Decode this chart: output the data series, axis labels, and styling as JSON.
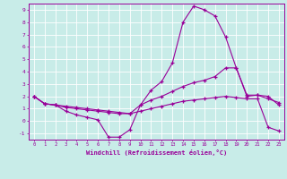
{
  "xlabel": "Windchill (Refroidissement éolien,°C)",
  "background_color": "#c8ece8",
  "line_color": "#990099",
  "grid_color": "#ffffff",
  "xlim": [
    -0.5,
    23.5
  ],
  "ylim": [
    -1.5,
    9.5
  ],
  "yticks": [
    -1,
    0,
    1,
    2,
    3,
    4,
    5,
    6,
    7,
    8,
    9
  ],
  "xticks": [
    0,
    1,
    2,
    3,
    4,
    5,
    6,
    7,
    8,
    9,
    10,
    11,
    12,
    13,
    14,
    15,
    16,
    17,
    18,
    19,
    20,
    21,
    22,
    23
  ],
  "curve1_x": [
    0,
    1,
    2,
    3,
    4,
    5,
    6,
    7,
    8,
    9,
    10,
    11,
    12,
    13,
    14,
    15,
    16,
    17,
    18,
    19,
    20,
    21,
    22,
    23
  ],
  "curve1_y": [
    2.0,
    1.4,
    1.3,
    0.8,
    0.5,
    0.3,
    0.1,
    -1.3,
    -1.3,
    -0.7,
    1.3,
    2.5,
    3.2,
    4.7,
    8.0,
    9.3,
    9.0,
    8.5,
    6.8,
    4.3,
    2.0,
    2.1,
    2.0,
    1.3
  ],
  "curve2_x": [
    0,
    1,
    2,
    3,
    4,
    5,
    6,
    7,
    8,
    9,
    10,
    11,
    12,
    13,
    14,
    15,
    16,
    17,
    18,
    19,
    20,
    21,
    22,
    23
  ],
  "curve2_y": [
    2.0,
    1.4,
    1.3,
    1.1,
    1.0,
    0.9,
    0.8,
    0.7,
    0.6,
    0.6,
    1.3,
    1.7,
    2.0,
    2.4,
    2.8,
    3.1,
    3.3,
    3.6,
    4.3,
    4.3,
    2.1,
    2.1,
    1.8,
    1.5
  ],
  "curve3_x": [
    0,
    1,
    2,
    3,
    4,
    5,
    6,
    7,
    8,
    9,
    10,
    11,
    12,
    13,
    14,
    15,
    16,
    17,
    18,
    19,
    20,
    21,
    22,
    23
  ],
  "curve3_y": [
    2.0,
    1.4,
    1.3,
    1.2,
    1.1,
    1.0,
    0.9,
    0.8,
    0.7,
    0.6,
    0.8,
    1.0,
    1.2,
    1.4,
    1.6,
    1.7,
    1.8,
    1.9,
    2.0,
    1.9,
    1.8,
    1.8,
    -0.5,
    -0.8
  ]
}
